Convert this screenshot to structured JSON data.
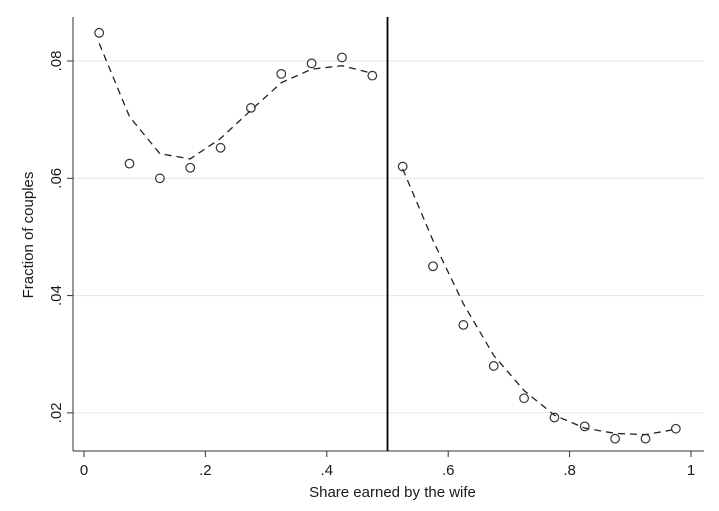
{
  "chart_data": {
    "type": "scatter",
    "xlabel": "Share earned by the wife",
    "ylabel": "Fraction of couples",
    "xlim": [
      0,
      1
    ],
    "ylim": [
      0.0135,
      0.0875
    ],
    "x_ticks": [
      0,
      0.2,
      0.4,
      0.6,
      0.8,
      1
    ],
    "x_tick_labels": [
      "0",
      ".2",
      ".4",
      ".6",
      ".8",
      "1"
    ],
    "y_ticks": [
      0.02,
      0.04,
      0.06,
      0.08
    ],
    "y_tick_labels": [
      ".02",
      ".04",
      ".06",
      ".08"
    ],
    "grid": "horizontal",
    "threshold_x": 0.5,
    "points": {
      "x": [
        0.025,
        0.075,
        0.125,
        0.175,
        0.225,
        0.275,
        0.325,
        0.375,
        0.425,
        0.475,
        0.525,
        0.575,
        0.625,
        0.675,
        0.725,
        0.775,
        0.825,
        0.875,
        0.925,
        0.975
      ],
      "y": [
        0.0848,
        0.0625,
        0.06,
        0.0618,
        0.0652,
        0.072,
        0.0778,
        0.0796,
        0.0806,
        0.0775,
        0.062,
        0.045,
        0.035,
        0.028,
        0.0225,
        0.0192,
        0.0177,
        0.0156,
        0.0156,
        0.0173
      ]
    },
    "fit_left": {
      "x": [
        0.025,
        0.075,
        0.125,
        0.175,
        0.225,
        0.275,
        0.325,
        0.375,
        0.425,
        0.475
      ],
      "y": [
        0.083,
        0.0705,
        0.0642,
        0.0633,
        0.0668,
        0.0716,
        0.0763,
        0.0786,
        0.0792,
        0.0779
      ]
    },
    "fit_right": {
      "x": [
        0.525,
        0.575,
        0.625,
        0.675,
        0.725,
        0.775,
        0.825,
        0.875,
        0.925,
        0.975
      ],
      "y": [
        0.0616,
        0.0494,
        0.0386,
        0.0298,
        0.0238,
        0.0196,
        0.0174,
        0.0165,
        0.0163,
        0.0172
      ]
    }
  }
}
